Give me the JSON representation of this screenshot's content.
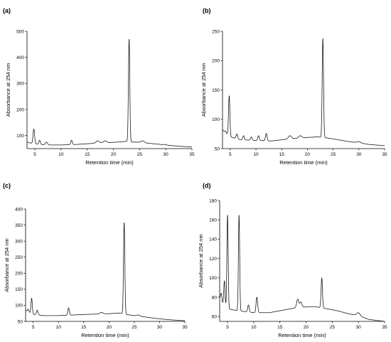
{
  "figure": {
    "line_color": "#1a1a1a",
    "axis_color": "#000000"
  },
  "chart_data": [
    {
      "panel_label": "(a)",
      "type": "line",
      "title": "",
      "xlabel": "Retention time (min)",
      "ylabel": "Absorbance at 254 nm",
      "xlim": [
        3.5,
        35
      ],
      "ylim": [
        50,
        500
      ],
      "xticks": [
        5,
        10,
        15,
        20,
        25,
        30,
        35
      ],
      "yticks": [
        100,
        200,
        300,
        400,
        500
      ],
      "grid": false,
      "baseline": [
        [
          3.5,
          75
        ],
        [
          4,
          72
        ],
        [
          5,
          68
        ],
        [
          7,
          64
        ],
        [
          10,
          64
        ],
        [
          13,
          66
        ],
        [
          16,
          70
        ],
        [
          20,
          74
        ],
        [
          21.5,
          76
        ],
        [
          22.5,
          78
        ],
        [
          23.5,
          75
        ],
        [
          24.5,
          75
        ],
        [
          26,
          72
        ],
        [
          28,
          68
        ],
        [
          30,
          64
        ],
        [
          32,
          60
        ],
        [
          35,
          56
        ]
      ],
      "peaks": [
        {
          "rt": 4.8,
          "height": 125,
          "width": 0.15
        },
        {
          "rt": 5.9,
          "height": 82,
          "width": 0.15
        },
        {
          "rt": 7.2,
          "height": 75,
          "width": 0.2
        },
        {
          "rt": 12.0,
          "height": 82,
          "width": 0.15
        },
        {
          "rt": 17.0,
          "height": 80,
          "width": 0.3
        },
        {
          "rt": 18.4,
          "height": 80,
          "width": 0.3
        },
        {
          "rt": 23.0,
          "height": 470,
          "width": 0.13
        },
        {
          "rt": 25.6,
          "height": 80,
          "width": 0.3
        },
        {
          "rt": 29.8,
          "height": 66,
          "width": 0.2
        }
      ]
    },
    {
      "panel_label": "(b)",
      "type": "line",
      "title": "",
      "xlabel": "Retention time (min)",
      "ylabel": "Absorbance at 254 nm",
      "xlim": [
        3.5,
        35
      ],
      "ylim": [
        50,
        250
      ],
      "xticks": [
        5,
        10,
        15,
        20,
        25,
        30,
        35
      ],
      "yticks": [
        50,
        100,
        150,
        200,
        250
      ],
      "grid": false,
      "baseline": [
        [
          3.5,
          82
        ],
        [
          4,
          78
        ],
        [
          5,
          70
        ],
        [
          7,
          65
        ],
        [
          10,
          64
        ],
        [
          13,
          63
        ],
        [
          16,
          66
        ],
        [
          20,
          69
        ],
        [
          22,
          70
        ],
        [
          24,
          68
        ],
        [
          26,
          65
        ],
        [
          28,
          62
        ],
        [
          30,
          60
        ],
        [
          32,
          57
        ],
        [
          35,
          55
        ]
      ],
      "peaks": [
        {
          "rt": 4.1,
          "height": 80,
          "width": 0.12
        },
        {
          "rt": 4.8,
          "height": 140,
          "width": 0.13
        },
        {
          "rt": 6.3,
          "height": 75,
          "width": 0.15
        },
        {
          "rt": 7.6,
          "height": 72,
          "width": 0.15
        },
        {
          "rt": 9.1,
          "height": 70,
          "width": 0.15
        },
        {
          "rt": 10.5,
          "height": 72,
          "width": 0.15
        },
        {
          "rt": 12.0,
          "height": 76,
          "width": 0.15
        },
        {
          "rt": 16.6,
          "height": 72,
          "width": 0.3
        },
        {
          "rt": 18.6,
          "height": 72,
          "width": 0.3
        },
        {
          "rt": 23.0,
          "height": 238,
          "width": 0.13
        },
        {
          "rt": 30.0,
          "height": 62,
          "width": 0.3
        }
      ]
    },
    {
      "panel_label": "(c)",
      "type": "line",
      "title": "",
      "xlabel": "Retention time (min)",
      "ylabel": "Absorbance at 254 nm",
      "xlim": [
        3.5,
        35
      ],
      "ylim": [
        50,
        400
      ],
      "xticks": [
        5,
        10,
        15,
        20,
        25,
        30,
        35
      ],
      "yticks": [
        50,
        100,
        150,
        200,
        250,
        300,
        350,
        400
      ],
      "grid": false,
      "baseline": [
        [
          3.5,
          85
        ],
        [
          4,
          80
        ],
        [
          5,
          72
        ],
        [
          7,
          68
        ],
        [
          10,
          68
        ],
        [
          13,
          70
        ],
        [
          16,
          72
        ],
        [
          20,
          74
        ],
        [
          22,
          76
        ],
        [
          24,
          70
        ],
        [
          26,
          66
        ],
        [
          28,
          62
        ],
        [
          30,
          58
        ],
        [
          32,
          55
        ],
        [
          35,
          52
        ]
      ],
      "peaks": [
        {
          "rt": 4.0,
          "height": 88,
          "width": 0.12
        },
        {
          "rt": 4.7,
          "height": 122,
          "width": 0.13
        },
        {
          "rt": 5.8,
          "height": 85,
          "width": 0.15
        },
        {
          "rt": 12.0,
          "height": 92,
          "width": 0.15
        },
        {
          "rt": 18.5,
          "height": 78,
          "width": 0.3
        },
        {
          "rt": 23.0,
          "height": 358,
          "width": 0.13
        },
        {
          "rt": 25.8,
          "height": 70,
          "width": 0.3
        }
      ]
    },
    {
      "panel_label": "(d)",
      "type": "line",
      "title": "",
      "xlabel": "Retention time (min)",
      "ylabel": "Absorbance at 254 nm",
      "xlim": [
        3.5,
        35
      ],
      "ylim": [
        55,
        180
      ],
      "xticks": [
        5,
        10,
        15,
        20,
        25,
        30,
        35
      ],
      "yticks": [
        60,
        80,
        100,
        120,
        140,
        160,
        180
      ],
      "grid": false,
      "baseline": [
        [
          3.5,
          80
        ],
        [
          4,
          74
        ],
        [
          5,
          68
        ],
        [
          7,
          66
        ],
        [
          10,
          64
        ],
        [
          13,
          64
        ],
        [
          16,
          67
        ],
        [
          18,
          69
        ],
        [
          20,
          70
        ],
        [
          22,
          70
        ],
        [
          24,
          68
        ],
        [
          26,
          66
        ],
        [
          28,
          63
        ],
        [
          30,
          61
        ],
        [
          32,
          57
        ],
        [
          35,
          55
        ]
      ],
      "peaks": [
        {
          "rt": 3.8,
          "height": 84,
          "width": 0.12
        },
        {
          "rt": 4.4,
          "height": 97,
          "width": 0.12
        },
        {
          "rt": 5.0,
          "height": 165,
          "width": 0.12
        },
        {
          "rt": 7.2,
          "height": 165,
          "width": 0.12
        },
        {
          "rt": 9.0,
          "height": 72,
          "width": 0.15
        },
        {
          "rt": 10.6,
          "height": 80,
          "width": 0.15
        },
        {
          "rt": 18.4,
          "height": 78,
          "width": 0.2
        },
        {
          "rt": 19.0,
          "height": 75,
          "width": 0.2
        },
        {
          "rt": 23.0,
          "height": 100,
          "width": 0.13
        },
        {
          "rt": 30.0,
          "height": 64,
          "width": 0.3
        }
      ]
    }
  ]
}
